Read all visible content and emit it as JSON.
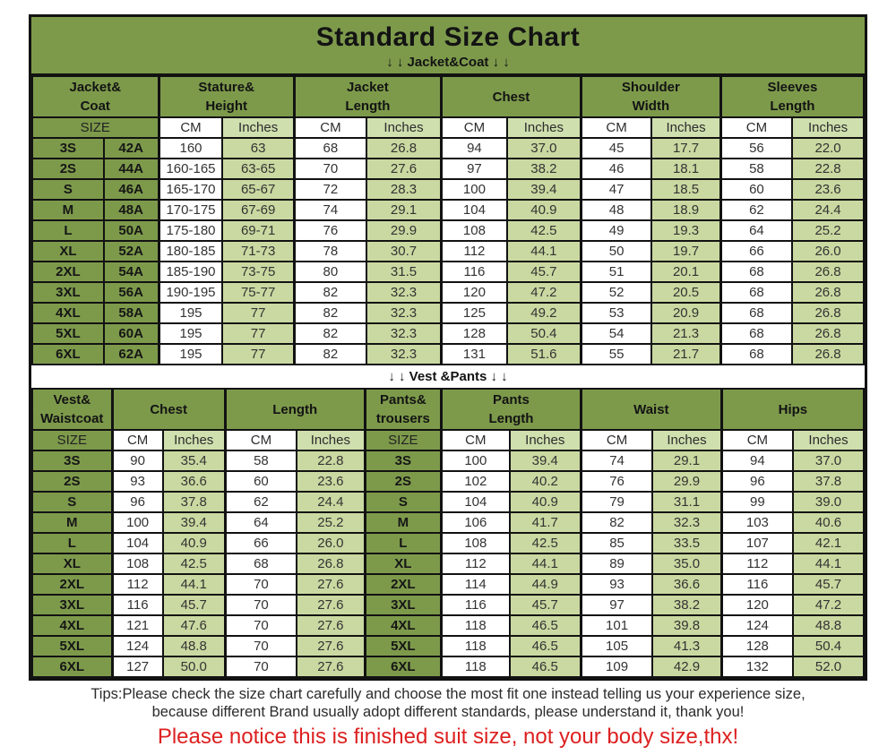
{
  "title": "Standard Size Chart",
  "jacket_section_label": "↓ ↓  Jacket&Coat ↓ ↓",
  "vest_section_label": "↓ ↓  Vest &Pants ↓ ↓",
  "labels": {
    "size": "SIZE",
    "cm": "CM",
    "inches": "Inches"
  },
  "colors": {
    "header_green": "#7d9a4b",
    "light_green": "#cad9a1",
    "border_black": "#121212",
    "notice_red": "#dd2020"
  },
  "jacket_table": {
    "groups": [
      "Jacket&\nCoat",
      "Stature&\nHeight",
      "Jacket\nLength",
      "Chest",
      "Shoulder\nWidth",
      "Sleeves\nLength"
    ],
    "rows": [
      [
        "3S",
        "42A",
        "160",
        "63",
        "68",
        "26.8",
        "94",
        "37.0",
        "45",
        "17.7",
        "56",
        "22.0"
      ],
      [
        "2S",
        "44A",
        "160-165",
        "63-65",
        "70",
        "27.6",
        "97",
        "38.2",
        "46",
        "18.1",
        "58",
        "22.8"
      ],
      [
        "S",
        "46A",
        "165-170",
        "65-67",
        "72",
        "28.3",
        "100",
        "39.4",
        "47",
        "18.5",
        "60",
        "23.6"
      ],
      [
        "M",
        "48A",
        "170-175",
        "67-69",
        "74",
        "29.1",
        "104",
        "40.9",
        "48",
        "18.9",
        "62",
        "24.4"
      ],
      [
        "L",
        "50A",
        "175-180",
        "69-71",
        "76",
        "29.9",
        "108",
        "42.5",
        "49",
        "19.3",
        "64",
        "25.2"
      ],
      [
        "XL",
        "52A",
        "180-185",
        "71-73",
        "78",
        "30.7",
        "112",
        "44.1",
        "50",
        "19.7",
        "66",
        "26.0"
      ],
      [
        "2XL",
        "54A",
        "185-190",
        "73-75",
        "80",
        "31.5",
        "116",
        "45.7",
        "51",
        "20.1",
        "68",
        "26.8"
      ],
      [
        "3XL",
        "56A",
        "190-195",
        "75-77",
        "82",
        "32.3",
        "120",
        "47.2",
        "52",
        "20.5",
        "68",
        "26.8"
      ],
      [
        "4XL",
        "58A",
        "195",
        "77",
        "82",
        "32.3",
        "125",
        "49.2",
        "53",
        "20.9",
        "68",
        "26.8"
      ],
      [
        "5XL",
        "60A",
        "195",
        "77",
        "82",
        "32.3",
        "128",
        "50.4",
        "54",
        "21.3",
        "68",
        "26.8"
      ],
      [
        "6XL",
        "62A",
        "195",
        "77",
        "82",
        "32.3",
        "131",
        "51.6",
        "55",
        "21.7",
        "68",
        "26.8"
      ]
    ]
  },
  "vest_table": {
    "groups": [
      "Vest&\nWaistcoat",
      "Chest",
      "Length",
      "Pants&\ntrousers",
      "Pants\nLength",
      "Waist",
      "Hips"
    ],
    "rows": [
      [
        "3S",
        "90",
        "35.4",
        "58",
        "22.8",
        "3S",
        "100",
        "39.4",
        "74",
        "29.1",
        "94",
        "37.0"
      ],
      [
        "2S",
        "93",
        "36.6",
        "60",
        "23.6",
        "2S",
        "102",
        "40.2",
        "76",
        "29.9",
        "96",
        "37.8"
      ],
      [
        "S",
        "96",
        "37.8",
        "62",
        "24.4",
        "S",
        "104",
        "40.9",
        "79",
        "31.1",
        "99",
        "39.0"
      ],
      [
        "M",
        "100",
        "39.4",
        "64",
        "25.2",
        "M",
        "106",
        "41.7",
        "82",
        "32.3",
        "103",
        "40.6"
      ],
      [
        "L",
        "104",
        "40.9",
        "66",
        "26.0",
        "L",
        "108",
        "42.5",
        "85",
        "33.5",
        "107",
        "42.1"
      ],
      [
        "XL",
        "108",
        "42.5",
        "68",
        "26.8",
        "XL",
        "112",
        "44.1",
        "89",
        "35.0",
        "112",
        "44.1"
      ],
      [
        "2XL",
        "112",
        "44.1",
        "70",
        "27.6",
        "2XL",
        "114",
        "44.9",
        "93",
        "36.6",
        "116",
        "45.7"
      ],
      [
        "3XL",
        "116",
        "45.7",
        "70",
        "27.6",
        "3XL",
        "116",
        "45.7",
        "97",
        "38.2",
        "120",
        "47.2"
      ],
      [
        "4XL",
        "121",
        "47.6",
        "70",
        "27.6",
        "4XL",
        "118",
        "46.5",
        "101",
        "39.8",
        "124",
        "48.8"
      ],
      [
        "5XL",
        "124",
        "48.8",
        "70",
        "27.6",
        "5XL",
        "118",
        "46.5",
        "105",
        "41.3",
        "128",
        "50.4"
      ],
      [
        "6XL",
        "127",
        "50.0",
        "70",
        "27.6",
        "6XL",
        "118",
        "46.5",
        "109",
        "42.9",
        "132",
        "52.0"
      ]
    ]
  },
  "tips": {
    "line1": "Tips:Please check the size chart carefully and choose the most fit one instead telling us your experience size,",
    "line2": "because different Brand usually adopt different standards, please understand it, thank you!",
    "notice": "Please notice this is finished suit size, not your body size,thx!"
  }
}
